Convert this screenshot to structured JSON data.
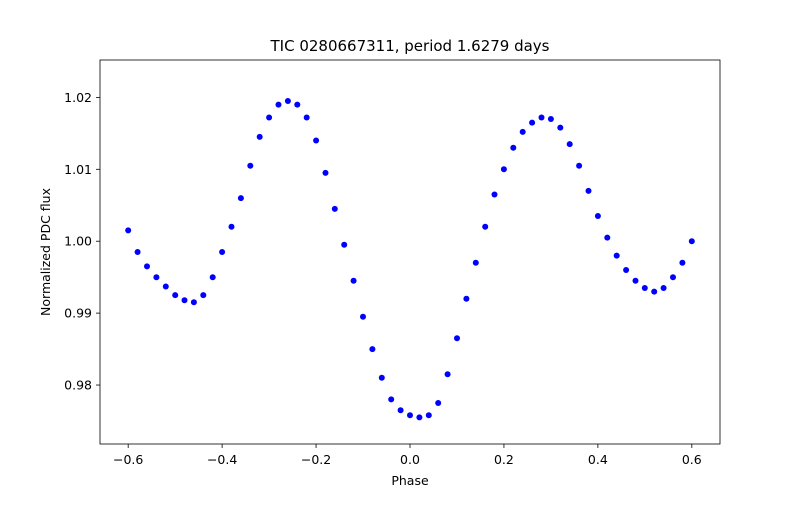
{
  "chart_data": {
    "type": "scatter",
    "title": "TIC 0280667311, period 1.6279 days",
    "xlabel": "Phase",
    "ylabel": "Normalized PDC flux",
    "xlim": [
      -0.66,
      0.66
    ],
    "ylim": [
      0.9718,
      1.0252
    ],
    "xticks": [
      -0.6,
      -0.4,
      -0.2,
      0.0,
      0.2,
      0.4,
      0.6
    ],
    "xtick_labels": [
      "−0.6",
      "−0.4",
      "−0.2",
      "0.0",
      "0.2",
      "0.4",
      "0.6"
    ],
    "yticks": [
      0.98,
      0.99,
      1.0,
      1.01,
      1.02
    ],
    "ytick_labels": [
      "0.98",
      "0.99",
      "1.00",
      "1.01",
      "1.02"
    ],
    "grid": false,
    "marker_color": "#0000ff",
    "series": [
      {
        "x": [
          -0.6,
          -0.58,
          -0.56,
          -0.54,
          -0.52,
          -0.5,
          -0.48,
          -0.46,
          -0.44,
          -0.42,
          -0.4,
          -0.38,
          -0.36,
          -0.34,
          -0.32,
          -0.3,
          -0.28,
          -0.26,
          -0.24,
          -0.22,
          -0.2,
          -0.18,
          -0.16,
          -0.14,
          -0.12,
          -0.1,
          -0.08,
          -0.06,
          -0.04,
          -0.02,
          0.0,
          0.02,
          0.04,
          0.06,
          0.08,
          0.1,
          0.12,
          0.14,
          0.16,
          0.18,
          0.2,
          0.22,
          0.24,
          0.26,
          0.28,
          0.3,
          0.32,
          0.34,
          0.36,
          0.38,
          0.4,
          0.42,
          0.44,
          0.46,
          0.48,
          0.5,
          0.52,
          0.54,
          0.56,
          0.58,
          0.6
        ],
        "y": [
          1.0015,
          0.9985,
          0.9965,
          0.995,
          0.9937,
          0.9925,
          0.9918,
          0.9915,
          0.9925,
          0.995,
          0.9985,
          1.002,
          1.006,
          1.0105,
          1.0145,
          1.0172,
          1.019,
          1.0195,
          1.019,
          1.0172,
          1.014,
          1.0095,
          1.0045,
          0.9995,
          0.9945,
          0.9895,
          0.985,
          0.981,
          0.978,
          0.9765,
          0.9758,
          0.9755,
          0.9758,
          0.9775,
          0.9815,
          0.9865,
          0.992,
          0.997,
          1.002,
          1.0065,
          1.01,
          1.013,
          1.0152,
          1.0165,
          1.0172,
          1.017,
          1.0158,
          1.0135,
          1.0105,
          1.007,
          1.0035,
          1.0005,
          0.998,
          0.996,
          0.9945,
          0.9935,
          0.993,
          0.9935,
          0.995,
          0.997,
          1.0
        ]
      }
    ]
  }
}
